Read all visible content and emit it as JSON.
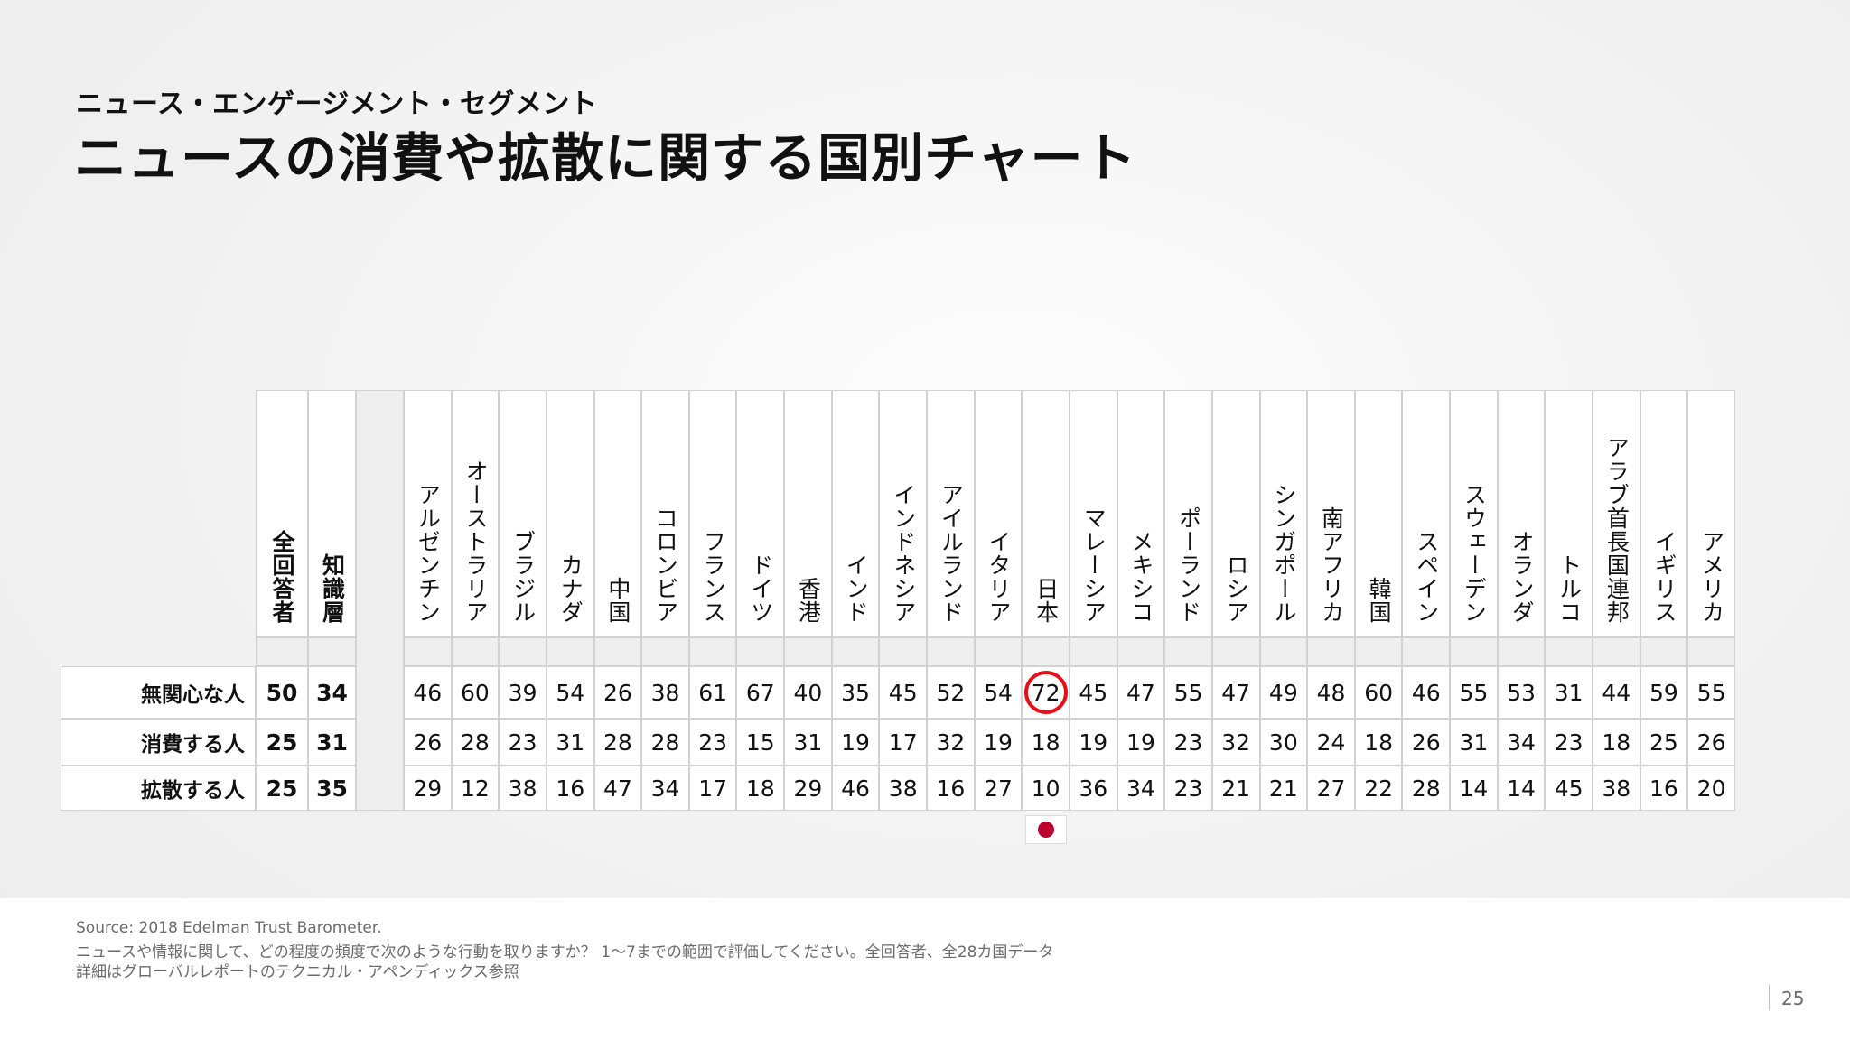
{
  "header": {
    "subtitle": "ニュース・エンゲージメント・セグメント",
    "title": "ニュースの消費や拡散に関する国別チャート"
  },
  "chart_data": {
    "type": "table",
    "summary_columns": [
      "全回答者",
      "知識層"
    ],
    "countries": [
      "アルゼンチン",
      "オーストラリア",
      "ブラジル",
      "カナダ",
      "中国",
      "コロンビア",
      "フランス",
      "ドイツ",
      "香港",
      "インド",
      "インドネシア",
      "アイルランド",
      "イタリア",
      "日本",
      "マレーシア",
      "メキシコ",
      "ポーランド",
      "ロシア",
      "シンガポール",
      "南アフリカ",
      "韓国",
      "スペイン",
      "スウェーデン",
      "オランダ",
      "トルコ",
      "アラブ首長国連邦",
      "イギリス",
      "アメリカ"
    ],
    "rows": [
      {
        "label": "無関心な人",
        "summary": [
          50,
          34
        ],
        "values": [
          46,
          60,
          39,
          54,
          26,
          38,
          61,
          67,
          40,
          35,
          45,
          52,
          54,
          72,
          45,
          47,
          55,
          47,
          49,
          48,
          60,
          46,
          55,
          53,
          31,
          44,
          59,
          55
        ]
      },
      {
        "label": "消費する人",
        "summary": [
          25,
          31
        ],
        "values": [
          26,
          28,
          23,
          31,
          28,
          28,
          23,
          15,
          31,
          19,
          17,
          32,
          19,
          18,
          19,
          19,
          23,
          32,
          30,
          24,
          18,
          26,
          31,
          34,
          23,
          18,
          25,
          26
        ]
      },
      {
        "label": "拡散する人",
        "summary": [
          25,
          35
        ],
        "values": [
          29,
          12,
          38,
          16,
          47,
          34,
          17,
          18,
          29,
          46,
          38,
          16,
          27,
          10,
          36,
          34,
          23,
          21,
          21,
          27,
          22,
          28,
          14,
          14,
          45,
          38,
          16,
          20
        ]
      }
    ],
    "highlight": {
      "country": "日本",
      "row": "無関心な人",
      "value": 72,
      "color": "#e6101a"
    },
    "flag_marker": {
      "country": "日本",
      "icon": "japan-flag-icon",
      "color": "#bc002d"
    }
  },
  "footer": {
    "source": "Source: 2018 Edelman Trust Barometer.",
    "question": "ニュースや情報に関して、どの程度の頻度で次のような行動を取りますか？ 1～7までの範囲で評価してください。全回答者、全28カ国データ",
    "note": "詳細はグローバルレポートのテクニカル・アペンディックス参照",
    "page_number": "25"
  }
}
